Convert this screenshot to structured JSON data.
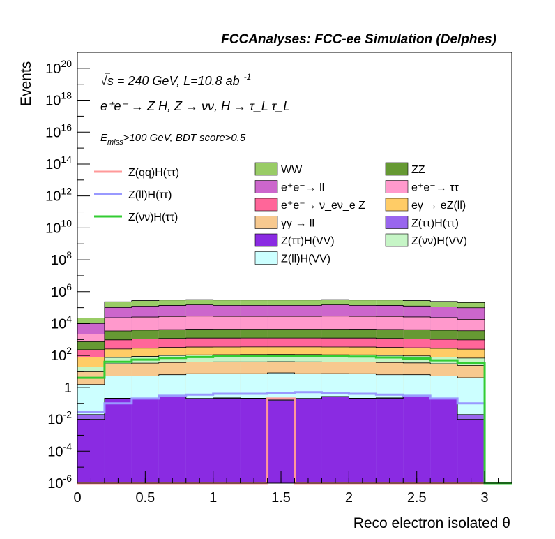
{
  "header": {
    "title": "FCCAnalyses: FCC-ee Simulation (Delphes)"
  },
  "annotations": {
    "line1": "√s = 240 GeV, L=10.8 ab",
    "line1_sup": "-1",
    "line2": "e⁺e⁻ → Z H, Z → νν, H → τ_L τ_L",
    "line3_pre": "E",
    "line3_sub": "miss",
    "line3_post": ">100 GeV, BDT score>0.5"
  },
  "chart_data": {
    "type": "area",
    "title": "FCCAnalyses: FCC-ee Simulation (Delphes)",
    "xlabel": "Reco electron isolated θ",
    "ylabel": "Events",
    "xlim": [
      0,
      3.2
    ],
    "ylim": [
      1e-06,
      1e+21
    ],
    "log_y": true,
    "x_ticks": [
      "0",
      "0.5",
      "1",
      "1.5",
      "2",
      "2.5",
      "3"
    ],
    "y_ticks": [
      {
        "base": "10",
        "exp": "-6",
        "value": 1e-06
      },
      {
        "base": "10",
        "exp": "-4",
        "value": 0.0001
      },
      {
        "base": "10",
        "exp": "-2",
        "value": 0.01
      },
      {
        "base": "1",
        "exp": "",
        "value": 1
      },
      {
        "base": "10",
        "exp": "2",
        "value": 100.0
      },
      {
        "base": "10",
        "exp": "4",
        "value": 10000.0
      },
      {
        "base": "10",
        "exp": "6",
        "value": 1000000.0
      },
      {
        "base": "10",
        "exp": "8",
        "value": 100000000.0
      },
      {
        "base": "10",
        "exp": "10",
        "value": 10000000000.0
      },
      {
        "base": "10",
        "exp": "12",
        "value": 1000000000000.0
      },
      {
        "base": "10",
        "exp": "14",
        "value": 100000000000000.0
      },
      {
        "base": "10",
        "exp": "16",
        "value": 1e+16
      },
      {
        "base": "10",
        "exp": "18",
        "value": 1e+18
      },
      {
        "base": "10",
        "exp": "20",
        "value": 1e+20
      }
    ],
    "bin_edges": [
      0,
      0.2,
      0.4,
      0.6,
      0.8,
      1.0,
      1.2,
      1.4,
      1.6,
      1.8,
      2.0,
      2.2,
      2.4,
      2.6,
      2.8,
      3.0
    ],
    "stack_levels": [
      {
        "name": "Z(ττ)H(VV)",
        "color": "#8a2be2",
        "values": [
          0.01,
          0.2,
          0.2,
          0.25,
          0.2,
          0.2,
          0.2,
          0.15,
          0.2,
          0.25,
          0.2,
          0.2,
          0.25,
          0.2,
          0.01
        ]
      },
      {
        "name": "Z(ττ)H(ττ)",
        "color": "#9966ee",
        "values": [
          0.01,
          0.01,
          0.02,
          0.02,
          0.005,
          0.02,
          0.01,
          0.02,
          0.005,
          0.02,
          0.01,
          0.02,
          0.015,
          1e-05,
          0.01
        ]
      },
      {
        "name": "Z(ll)H(VV)",
        "color": "#ccffff",
        "values": [
          1.5,
          5.0,
          5.0,
          6.0,
          7.0,
          7.0,
          7.0,
          8.0,
          7.0,
          7.0,
          7.0,
          6.0,
          6.0,
          5.0,
          4.0
        ]
      },
      {
        "name": "γγ → ll",
        "color": "#f7c98f",
        "values": [
          8.0,
          25.0,
          28.0,
          30.0,
          32.0,
          33.0,
          33.0,
          33.0,
          33.0,
          32.0,
          32.0,
          30.0,
          28.0,
          25.0,
          20.0
        ]
      },
      {
        "name": "Z(νν)H(VV)",
        "color": "#c6f5c6",
        "values": [
          10.0,
          45.0,
          55.0,
          65.0,
          70.0,
          72.0,
          75.0,
          75.0,
          75.0,
          72.0,
          70.0,
          65.0,
          60.0,
          50.0,
          45.0
        ]
      },
      {
        "name": "eγ → eZ(ll)",
        "color": "#ffcc66",
        "values": [
          60.0,
          180.0,
          200.0,
          220.0,
          230.0,
          230.0,
          230.0,
          230.0,
          230.0,
          230.0,
          230.0,
          220.0,
          210.0,
          200.0,
          180.0
        ]
      },
      {
        "name": "e⁺e⁻→ ν_eν_e Z",
        "color": "#ff6699",
        "values": [
          150.0,
          700.0,
          800.0,
          850.0,
          900.0,
          900.0,
          900.0,
          900.0,
          900.0,
          900.0,
          900.0,
          850.0,
          800.0,
          750.0,
          700.0
        ]
      },
      {
        "name": "ZZ",
        "color": "#669933",
        "values": [
          500.0,
          2500.0,
          2800.0,
          3000.0,
          3200.0,
          3200.0,
          3200.0,
          3200.0,
          3200.0,
          3200.0,
          3200.0,
          3100.0,
          3000.0,
          2800.0,
          2600.0
        ]
      },
      {
        "name": "e⁺e⁻→ ττ",
        "color": "#ff99cc",
        "values": [
          1500.0,
          20000.0,
          22000.0,
          24000.0,
          25000.0,
          24000.0,
          24000.0,
          24000.0,
          24000.0,
          25000.0,
          24000.0,
          24000.0,
          22000.0,
          20000.0,
          15000.0
        ]
      },
      {
        "name": "e⁺e⁻→ ll",
        "color": "#cc66cc",
        "values": [
          8000.0,
          80000.0,
          100000.0,
          110000.0,
          120000.0,
          110000.0,
          110000.0,
          110000.0,
          110000.0,
          120000.0,
          110000.0,
          110000.0,
          100000.0,
          90000.0,
          80000.0
        ]
      },
      {
        "name": "WW",
        "color": "#99cc66",
        "values": [
          12000.0,
          130000.0,
          150000.0,
          160000.0,
          170000.0,
          160000.0,
          160000.0,
          160000.0,
          160000.0,
          170000.0,
          160000.0,
          160000.0,
          150000.0,
          130000.0,
          110000.0
        ]
      }
    ],
    "overlay_series": [
      {
        "name": "Z(qq)H(ττ)",
        "color": "#ff9999",
        "values": [
          0,
          0,
          0,
          0,
          0,
          0,
          0,
          0.2,
          0,
          0,
          0,
          0,
          0,
          0,
          0
        ]
      },
      {
        "name": "Z(ll)H(ττ)",
        "color": "#9999ff",
        "values": [
          0.03,
          0.1,
          0.2,
          0.3,
          0.35,
          0.4,
          0.4,
          0.45,
          0.5,
          0.45,
          0.4,
          0.35,
          0.3,
          0.2,
          0.1
        ]
      },
      {
        "name": "Z(νν)H(ττ)",
        "color": "#33cc33",
        "values": [
          4.0,
          40.0,
          55.0,
          70.0,
          80.0,
          90.0,
          95.0,
          95.0,
          95.0,
          90.0,
          85.0,
          75.0,
          65.0,
          50.0,
          35.0
        ]
      }
    ],
    "legend_left": [
      {
        "label": "Z(qq)H(ττ)",
        "color": "#ff9999"
      },
      {
        "label": "Z(ll)H(ττ)",
        "color": "#9999ff"
      },
      {
        "label": "Z(νν)H(ττ)",
        "color": "#33cc33"
      }
    ],
    "legend_right": [
      {
        "label": "WW",
        "color": "#99cc66"
      },
      {
        "label": "ZZ",
        "color": "#669933"
      },
      {
        "label": "e⁺e⁻→ ll",
        "color": "#cc66cc"
      },
      {
        "label": "e⁺e⁻→ ττ",
        "color": "#ff99cc"
      },
      {
        "label": "e⁺e⁻→ ν_eν_e Z",
        "color": "#ff6699"
      },
      {
        "label": "eγ → eZ(ll)",
        "color": "#ffcc66"
      },
      {
        "label": "γγ → ll",
        "color": "#f7c98f"
      },
      {
        "label": "Z(ττ)H(ττ)",
        "color": "#9966ee"
      },
      {
        "label": "Z(ττ)H(VV)",
        "color": "#8a2be2"
      },
      {
        "label": "Z(νν)H(VV)",
        "color": "#c6f5c6"
      },
      {
        "label": "Z(ll)H(VV)",
        "color": "#ccffff"
      }
    ]
  }
}
